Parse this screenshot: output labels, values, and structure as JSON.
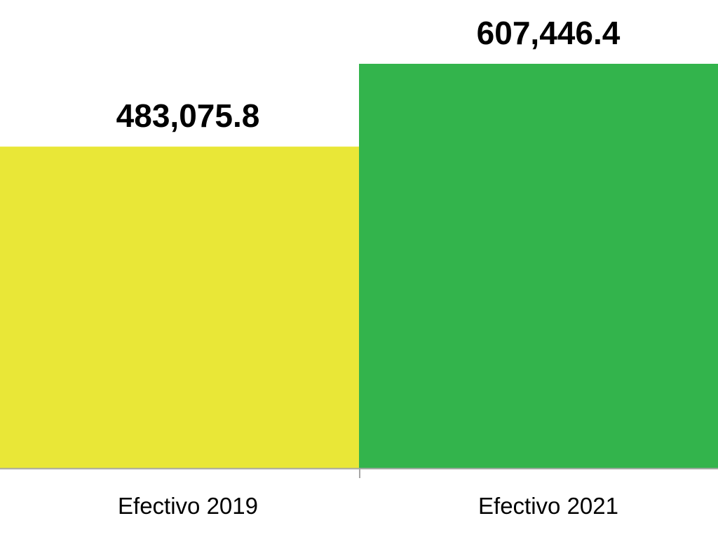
{
  "chart_data": {
    "type": "bar",
    "categories": [
      "Efectivo 2019",
      "Efectivo 2021"
    ],
    "values": [
      483075.8,
      607446.4
    ],
    "data_labels": [
      "483,075.8",
      "607,446.4"
    ],
    "colors": [
      "#e9e737",
      "#33b44c"
    ],
    "axis_color": "#a6a6a6",
    "ylim": [
      0,
      700000
    ],
    "grid": false,
    "legend": "none"
  }
}
